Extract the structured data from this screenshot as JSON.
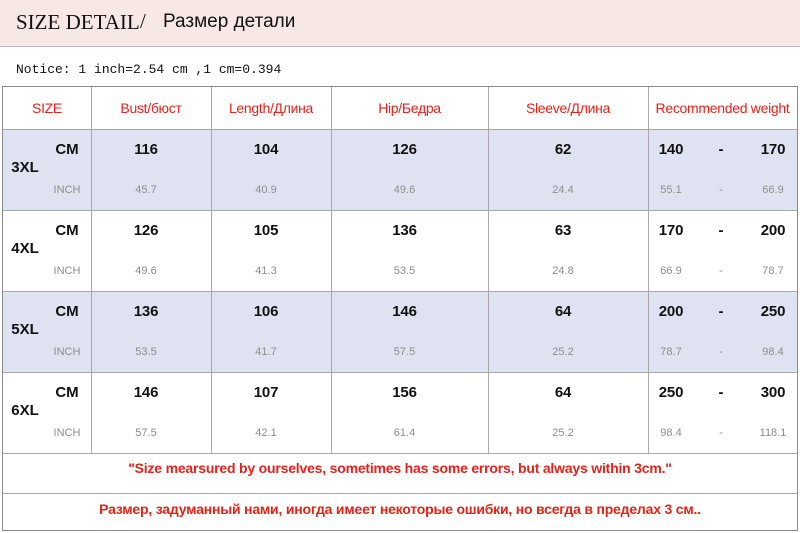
{
  "header": {
    "title_en": "SIZE DETAIL",
    "separator": "/",
    "title_ru": "Размер детали"
  },
  "notice": "Notice: 1 inch=2.54 cm ,1 cm=0.394",
  "table": {
    "columns": [
      "SIZE",
      "Bust/бюст",
      "Length/Длина",
      "Hip/Бедра",
      "Sleeve/Длина",
      "Recommended weight"
    ],
    "unit_cm": "CM",
    "unit_inch": "INCH",
    "dash": "-",
    "rows": [
      {
        "size": "3XL",
        "cm": {
          "bust": "116",
          "length": "104",
          "hip": "126",
          "sleeve": "62",
          "w_min": "140",
          "w_max": "170"
        },
        "inch": {
          "bust": "45.7",
          "length": "40.9",
          "hip": "49.6",
          "sleeve": "24.4",
          "w_min": "55.1",
          "w_max": "66.9"
        }
      },
      {
        "size": "4XL",
        "cm": {
          "bust": "126",
          "length": "105",
          "hip": "136",
          "sleeve": "63",
          "w_min": "170",
          "w_max": "200"
        },
        "inch": {
          "bust": "49.6",
          "length": "41.3",
          "hip": "53.5",
          "sleeve": "24.8",
          "w_min": "66.9",
          "w_max": "78.7"
        }
      },
      {
        "size": "5XL",
        "cm": {
          "bust": "136",
          "length": "106",
          "hip": "146",
          "sleeve": "64",
          "w_min": "200",
          "w_max": "250"
        },
        "inch": {
          "bust": "53.5",
          "length": "41.7",
          "hip": "57.5",
          "sleeve": "25.2",
          "w_min": "78.7",
          "w_max": "98.4"
        }
      },
      {
        "size": "6XL",
        "cm": {
          "bust": "146",
          "length": "107",
          "hip": "156",
          "sleeve": "64",
          "w_min": "250",
          "w_max": "300"
        },
        "inch": {
          "bust": "57.5",
          "length": "42.1",
          "hip": "61.4",
          "sleeve": "25.2",
          "w_min": "98.4",
          "w_max": "118.1"
        }
      }
    ]
  },
  "notes": {
    "en": "\"Size mearsured by ourselves, sometimes has some errors, but always within 3cm.\"",
    "ru": "Размер, задуманный нами, иногда имеет некоторые ошибки, но всегда в пределах 3 см.."
  },
  "colors": {
    "accent_red": "#e2231a",
    "row_shade": "#dfe3f1",
    "header_bg": "#f7e8e6"
  }
}
